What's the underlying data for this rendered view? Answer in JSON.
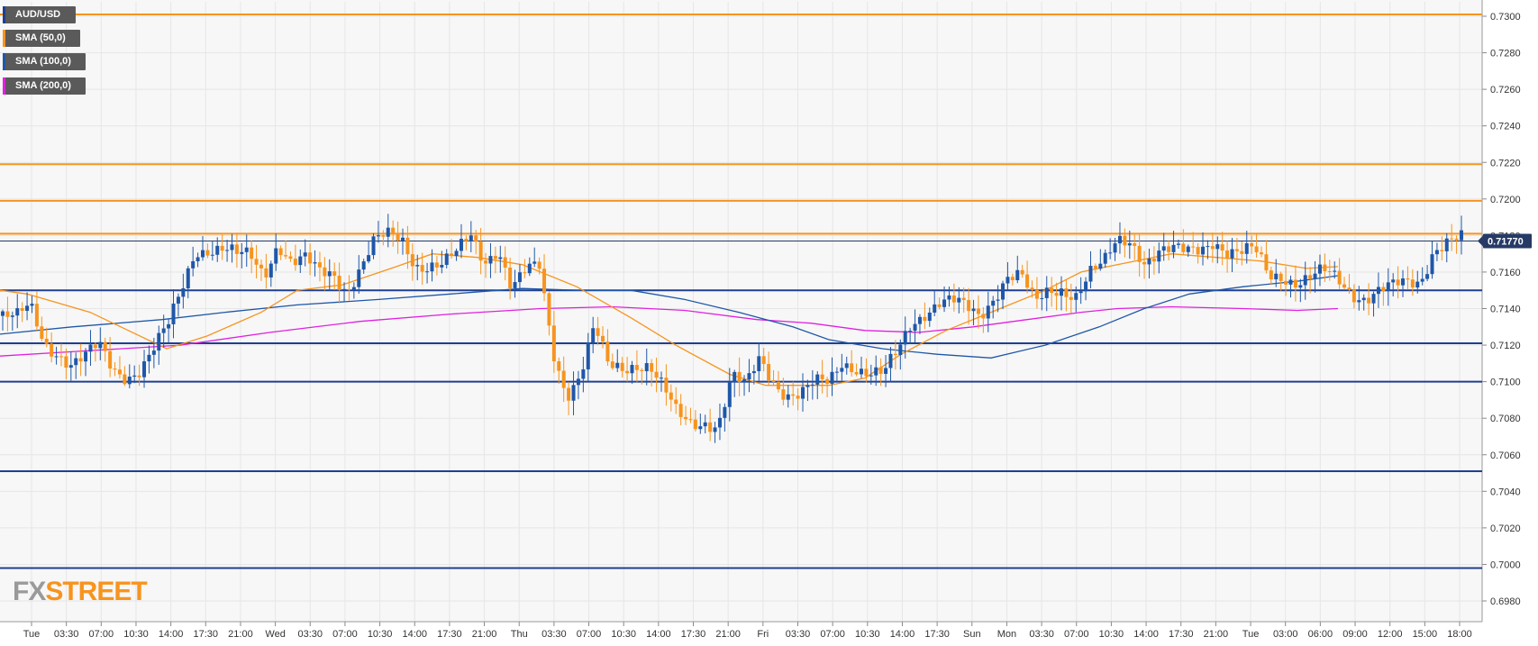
{
  "chart_data": {
    "type": "candlestick",
    "symbol": "AUD/USD",
    "legend": [
      {
        "label": "AUD/USD",
        "color": "#1f3f8f"
      },
      {
        "label": "SMA (50,0)",
        "color": "#f7941e"
      },
      {
        "label": "SMA (100,0)",
        "color": "#1f57a8"
      },
      {
        "label": "SMA (200,0)",
        "color": "#e020e0"
      }
    ],
    "ylim": [
      0.697,
      0.731
    ],
    "y_ticks": [
      "0.7300",
      "0.7280",
      "0.7260",
      "0.7240",
      "0.7220",
      "0.7200",
      "0.7180",
      "0.7160",
      "0.7140",
      "0.7120",
      "0.7100",
      "0.7080",
      "0.7060",
      "0.7040",
      "0.7020",
      "0.7000",
      "0.6980"
    ],
    "x_ticks": [
      "Tue",
      "03:30",
      "07:00",
      "10:30",
      "14:00",
      "17:30",
      "21:00",
      "Wed",
      "03:30",
      "07:00",
      "10:30",
      "14:00",
      "17:30",
      "21:00",
      "Thu",
      "03:30",
      "07:00",
      "10:30",
      "14:00",
      "17:30",
      "21:00",
      "Fri",
      "03:30",
      "07:00",
      "10:30",
      "14:00",
      "17:30",
      "Sun",
      "Mon",
      "03:30",
      "07:00",
      "10:30",
      "14:00",
      "17:30",
      "21:00",
      "Tue",
      "03:00",
      "06:00",
      "09:00",
      "12:00",
      "15:00",
      "18:00"
    ],
    "current_price": "0.71770",
    "current_price_value": 0.7177,
    "resistance_levels": [
      0.7301,
      0.7219,
      0.7199,
      0.7181
    ],
    "support_levels": [
      0.715,
      0.7121,
      0.71,
      0.7051,
      0.6998
    ],
    "price_path": [
      0.7136,
      0.7133,
      0.714,
      0.7122,
      0.7118,
      0.711,
      0.7112,
      0.7118,
      0.7107,
      0.7105,
      0.7108,
      0.7117,
      0.7128,
      0.715,
      0.7174,
      0.7174,
      0.7172,
      0.7167,
      0.7168,
      0.716,
      0.7178,
      0.7165,
      0.7165,
      0.7158,
      0.716,
      0.7152,
      0.7163,
      0.7175,
      0.7178,
      0.7178,
      0.7166,
      0.7165,
      0.7163,
      0.7168,
      0.718,
      0.7168,
      0.7175,
      0.715,
      0.7158,
      0.7162,
      0.7118,
      0.7095,
      0.7104,
      0.7128,
      0.7107,
      0.7108,
      0.7112,
      0.711,
      0.7095,
      0.708,
      0.7077,
      0.708,
      0.7078,
      0.7102,
      0.7095,
      0.7112,
      0.7102,
      0.7095,
      0.7093,
      0.7097,
      0.7098,
      0.7112,
      0.711,
      0.7105,
      0.7102,
      0.7114,
      0.7132,
      0.714,
      0.7145,
      0.7143,
      0.7138,
      0.7135,
      0.7148,
      0.716,
      0.7158,
      0.714,
      0.7148,
      0.7152,
      0.715,
      0.716,
      0.7162,
      0.7175,
      0.7178,
      0.7168,
      0.7172,
      0.717,
      0.7169,
      0.7173,
      0.718,
      0.7172,
      0.7169,
      0.717,
      0.7158,
      0.716,
      0.7156,
      0.7156,
      0.7158,
      0.7155,
      0.715,
      0.7148,
      0.715,
      0.715,
      0.7152,
      0.7155,
      0.7175,
      0.7178,
      0.7177
    ],
    "sma_50": [
      [
        0,
        0.715
      ],
      [
        30,
        0.7148
      ],
      [
        100,
        0.7138
      ],
      [
        185,
        0.7118
      ],
      [
        230,
        0.7125
      ],
      [
        290,
        0.7138
      ],
      [
        330,
        0.715
      ],
      [
        380,
        0.7153
      ],
      [
        440,
        0.7163
      ],
      [
        480,
        0.717
      ],
      [
        530,
        0.7168
      ],
      [
        580,
        0.7164
      ],
      [
        640,
        0.7152
      ],
      [
        700,
        0.7135
      ],
      [
        750,
        0.712
      ],
      [
        810,
        0.7104
      ],
      [
        850,
        0.7098
      ],
      [
        920,
        0.7098
      ],
      [
        960,
        0.7102
      ],
      [
        1000,
        0.7115
      ],
      [
        1050,
        0.7128
      ],
      [
        1110,
        0.714
      ],
      [
        1160,
        0.715
      ],
      [
        1200,
        0.716
      ],
      [
        1250,
        0.7165
      ],
      [
        1300,
        0.717
      ],
      [
        1350,
        0.7168
      ],
      [
        1400,
        0.7166
      ],
      [
        1450,
        0.7162
      ],
      [
        1485,
        0.7163
      ]
    ],
    "sma_100": [
      [
        0,
        0.7126
      ],
      [
        80,
        0.713
      ],
      [
        180,
        0.7134
      ],
      [
        250,
        0.7138
      ],
      [
        330,
        0.7142
      ],
      [
        420,
        0.7145
      ],
      [
        500,
        0.7148
      ],
      [
        580,
        0.7151
      ],
      [
        640,
        0.715
      ],
      [
        700,
        0.715
      ],
      [
        760,
        0.7145
      ],
      [
        820,
        0.7138
      ],
      [
        880,
        0.713
      ],
      [
        920,
        0.7123
      ],
      [
        980,
        0.7118
      ],
      [
        1040,
        0.7115
      ],
      [
        1100,
        0.7113
      ],
      [
        1160,
        0.712
      ],
      [
        1220,
        0.713
      ],
      [
        1270,
        0.714
      ],
      [
        1320,
        0.7148
      ],
      [
        1380,
        0.7152
      ],
      [
        1440,
        0.7155
      ],
      [
        1485,
        0.7158
      ]
    ],
    "sma_200": [
      [
        0,
        0.7114
      ],
      [
        100,
        0.7117
      ],
      [
        200,
        0.712
      ],
      [
        300,
        0.7127
      ],
      [
        400,
        0.7133
      ],
      [
        500,
        0.7137
      ],
      [
        600,
        0.714
      ],
      [
        680,
        0.7141
      ],
      [
        760,
        0.7139
      ],
      [
        840,
        0.7134
      ],
      [
        900,
        0.7132
      ],
      [
        960,
        0.7128
      ],
      [
        1020,
        0.7127
      ],
      [
        1080,
        0.713
      ],
      [
        1140,
        0.7134
      ],
      [
        1200,
        0.7138
      ],
      [
        1240,
        0.714
      ],
      [
        1300,
        0.7141
      ],
      [
        1380,
        0.714
      ],
      [
        1440,
        0.7139
      ],
      [
        1485,
        0.714
      ]
    ]
  },
  "branding": {
    "fx": "FX",
    "street": "STREET"
  },
  "colors": {
    "bull": "#1f57a8",
    "bear": "#f7941e",
    "resistance": "#f7941e",
    "support": "#1f3f8f",
    "price_tag": "#263a66",
    "grid": "#e6e6e6",
    "plot_bg": "#f7f7f7"
  }
}
